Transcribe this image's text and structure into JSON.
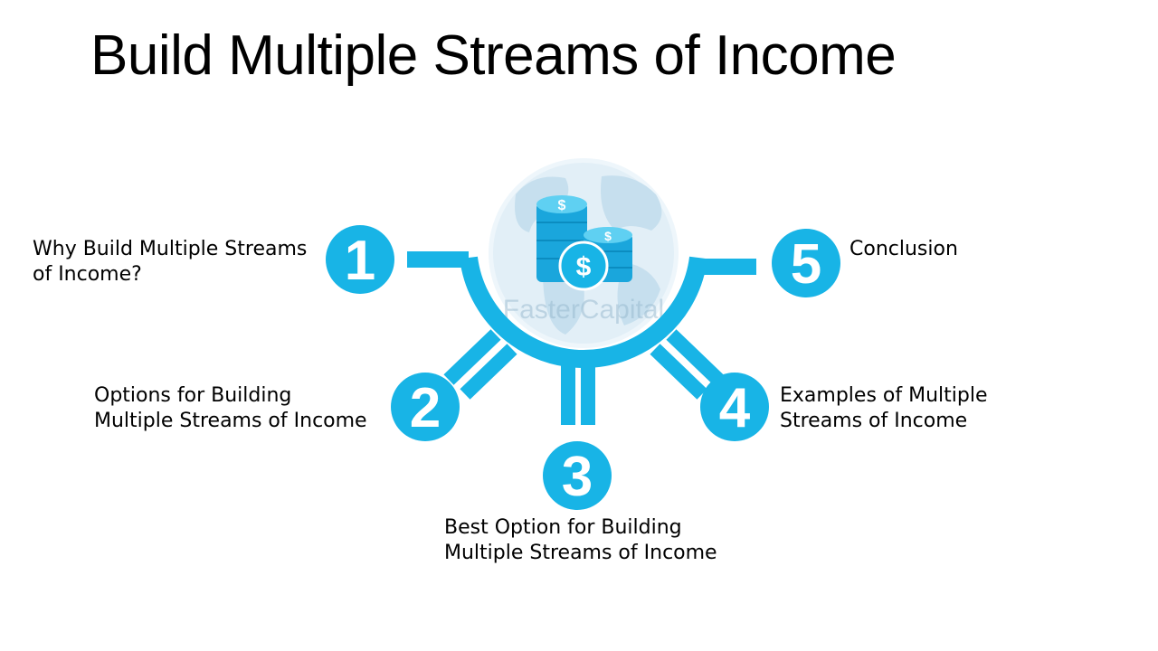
{
  "title": "Build Multiple Streams of Income",
  "watermark": "FasterCapital",
  "steps": [
    {
      "number": "1",
      "label_line1": "Why Build Multiple Streams",
      "label_line2": "of Income?"
    },
    {
      "number": "2",
      "label_line1": "Options for Building",
      "label_line2": "Multiple Streams of Income"
    },
    {
      "number": "3",
      "label_line1": "Best Option for Building",
      "label_line2": "Multiple Streams of Income"
    },
    {
      "number": "4",
      "label_line1": "Examples of Multiple",
      "label_line2": "Streams of Income"
    },
    {
      "number": "5",
      "label_line1": "Conclusion",
      "label_line2": ""
    }
  ],
  "colors": {
    "accent": "#18b4e6",
    "globe": "#d8eaf4",
    "coin": "#1aa6dc"
  }
}
